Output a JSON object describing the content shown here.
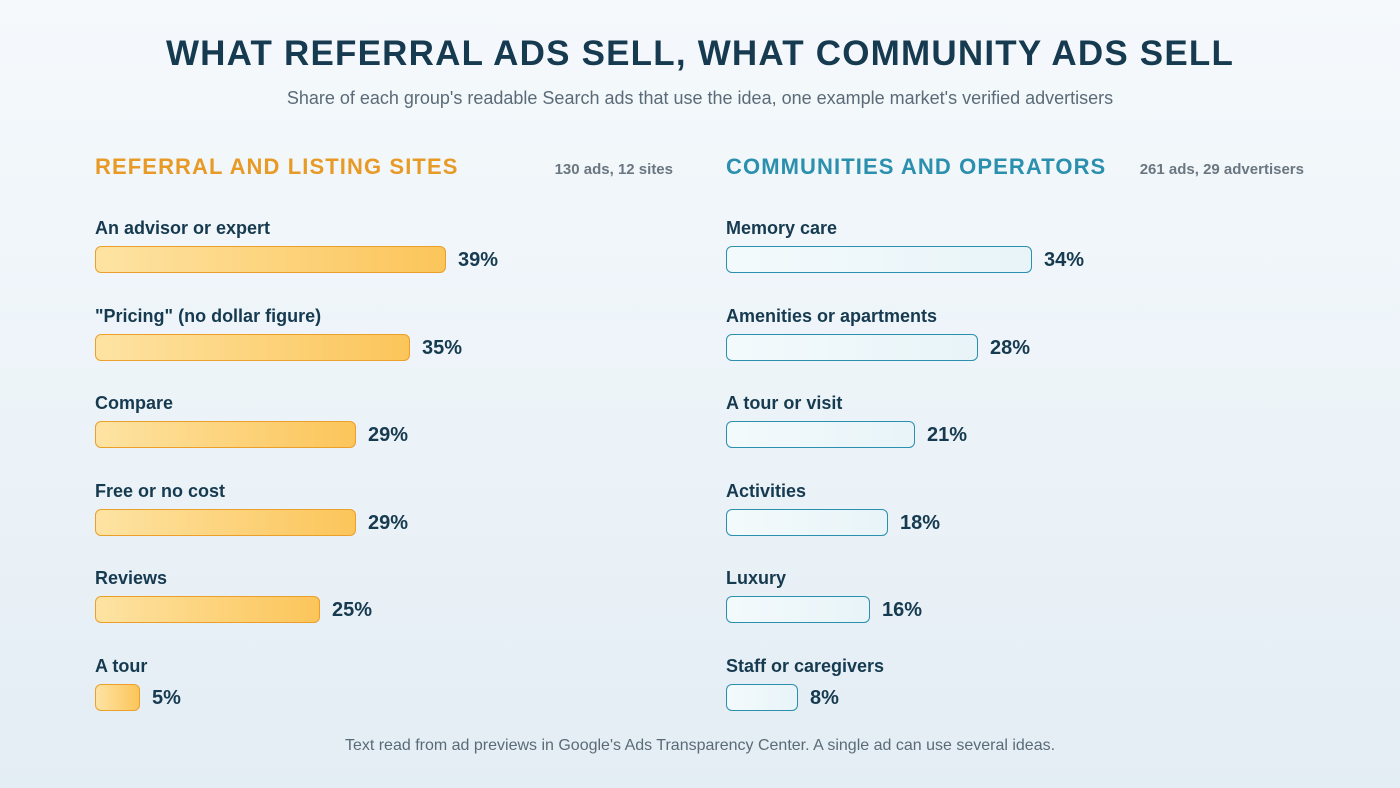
{
  "title": "WHAT REFERRAL ADS SELL, WHAT COMMUNITY ADS SELL",
  "subtitle": "Share of each group's readable Search ads that use the idea, one example market's verified advertisers",
  "footnote": "Text read from ad previews in Google's Ads Transparency Center. A single ad can use several ideas.",
  "colors": {
    "referral_accent": "#e89a26",
    "referral_bar": "#fdd47e",
    "community_accent": "#2b8fae",
    "community_bar": "#eef7fa",
    "text": "#163a4f"
  },
  "chart_data": [
    {
      "type": "bar",
      "orientation": "horizontal",
      "title": "REFERRAL AND LISTING SITES",
      "count_label": "130 ads, 12 sites",
      "unit": "%",
      "xlim": [
        0,
        100
      ],
      "categories": [
        "An advisor or expert",
        "\"Pricing\" (no dollar figure)",
        "Compare",
        "Free or no cost",
        "Reviews",
        "A tour"
      ],
      "values": [
        39,
        35,
        29,
        29,
        25,
        5
      ],
      "value_labels": [
        "39%",
        "35%",
        "29%",
        "29%",
        "25%",
        "5%"
      ]
    },
    {
      "type": "bar",
      "orientation": "horizontal",
      "title": "COMMUNITIES AND OPERATORS",
      "count_label": "261 ads, 29 advertisers",
      "unit": "%",
      "xlim": [
        0,
        100
      ],
      "categories": [
        "Memory care",
        "Amenities or apartments",
        "A tour or visit",
        "Activities",
        "Luxury",
        "Staff or caregivers"
      ],
      "values": [
        34,
        28,
        21,
        18,
        16,
        8
      ],
      "value_labels": [
        "34%",
        "28%",
        "21%",
        "18%",
        "16%",
        "8%"
      ]
    }
  ]
}
